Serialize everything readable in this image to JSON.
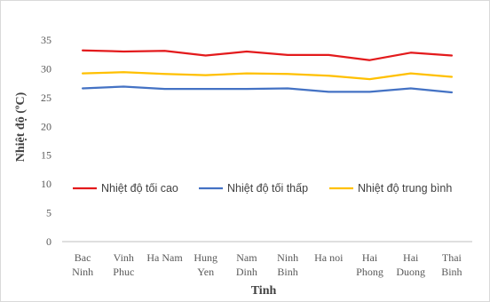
{
  "chart_data": {
    "type": "line",
    "title": "",
    "xlabel": "Tinh",
    "ylabel": "Nhiệt độ (ºC)",
    "categories": [
      [
        "Bac",
        "Ninh"
      ],
      [
        "Vinh",
        "Phuc"
      ],
      [
        "Ha Nam"
      ],
      [
        "Hung",
        "Yen"
      ],
      [
        "Nam",
        "Dinh"
      ],
      [
        "Ninh",
        "Binh"
      ],
      [
        "Ha noi"
      ],
      [
        "Hai",
        "Phong"
      ],
      [
        "Hai",
        "Duong"
      ],
      [
        "Thai",
        "Binh"
      ]
    ],
    "ylim": [
      0,
      35
    ],
    "yticks": [
      0,
      5,
      10,
      15,
      20,
      25,
      30,
      35
    ],
    "grid": false,
    "legend_position": "inside-center",
    "series": [
      {
        "name": "Nhiệt độ tối cao",
        "color": "#e31a1c",
        "values": [
          33.2,
          33.0,
          33.1,
          32.3,
          33.0,
          32.4,
          32.4,
          31.5,
          32.8,
          32.3
        ]
      },
      {
        "name": "Nhiệt độ tối thấp",
        "color": "#4472c4",
        "values": [
          26.6,
          26.9,
          26.5,
          26.5,
          26.5,
          26.6,
          26.0,
          26.0,
          26.6,
          25.9
        ]
      },
      {
        "name": "Nhiệt độ trung bình",
        "color": "#ffc000",
        "values": [
          29.2,
          29.4,
          29.1,
          28.9,
          29.2,
          29.1,
          28.8,
          28.2,
          29.2,
          28.6
        ]
      }
    ]
  }
}
